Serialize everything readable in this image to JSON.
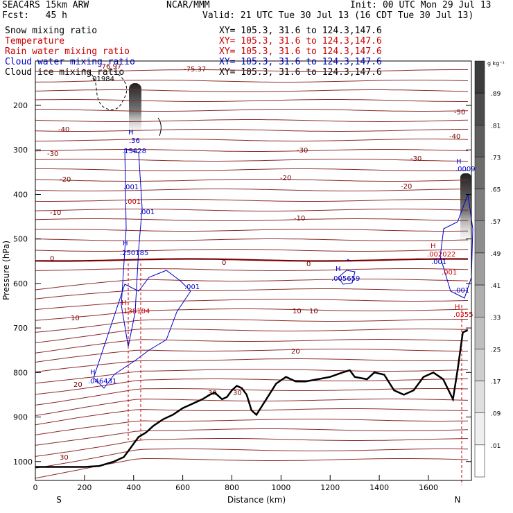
{
  "header": {
    "model": "SEAC4RS 15km ARW",
    "center": "NCAR/MMM",
    "init": "Init: 00 UTC Mon 29 Jul 13",
    "fcst": "Fcst:   45 h",
    "valid": "Valid: 21 UTC Tue 30 Jul 13 (16 CDT Tue 30 Jul 13)"
  },
  "fields": [
    {
      "name": "Snow mixing ratio",
      "xy": "XY= 105.3, 31.6 to 124.3,147.6",
      "color": "#000000"
    },
    {
      "name": "Temperature",
      "xy": "XY= 105.3, 31.6 to 124.3,147.6",
      "color": "#cc0000"
    },
    {
      "name": "Rain water mixing ratio",
      "xy": "XY= 105.3, 31.6 to 124.3,147.6",
      "color": "#cc0000"
    },
    {
      "name": "Cloud water mixing ratio",
      "xy": "XY= 105.3, 31.6 to 124.3,147.6",
      "color": "#0000cc"
    },
    {
      "name": "Cloud ice mixing ratio",
      "xy": "XY= 105.3, 31.6 to 124.3,147.6",
      "color": "#000000"
    }
  ],
  "chart_data": {
    "type": "contour",
    "xlabel": "Distance (km)",
    "ylabel": "Pressure (hPa)",
    "xlim": [
      0,
      1775
    ],
    "ylim": [
      1000,
      100
    ],
    "xticks": [
      0,
      200,
      400,
      600,
      800,
      1000,
      1200,
      1400,
      1600
    ],
    "yticks": [
      200,
      300,
      400,
      500,
      600,
      700,
      800,
      900,
      1000
    ],
    "x_endpoints": {
      "left": "S",
      "right": "N"
    },
    "colorbar": {
      "unit": "g kg⁻¹",
      "labels": [
        ".89",
        ".81",
        ".73",
        ".65",
        ".57",
        ".49",
        ".41",
        ".33",
        ".25",
        ".17",
        ".09",
        ".01"
      ]
    },
    "temperature_labels": [
      "-75.37",
      "-76.97",
      "-50",
      "-40",
      "-30",
      "-20",
      "-10",
      "0",
      "10",
      "20",
      "30"
    ],
    "snow_labels": [
      ".01984"
    ],
    "cloud_water_labels": [
      "H",
      ".36",
      ".15628",
      ".001",
      "H",
      ".250185",
      ".001",
      "H",
      ".005659",
      "^",
      ".001",
      "H",
      ".0009",
      "H",
      ".046431"
    ],
    "rain_labels": [
      ".001",
      "H",
      ".138104",
      "H",
      ".002022",
      ".001",
      "H",
      ".0355"
    ],
    "terrain_km": [
      0,
      120,
      200,
      260,
      320,
      360,
      380,
      400,
      420,
      450,
      480,
      520,
      560,
      600,
      640,
      680,
      710,
      730,
      760,
      780,
      800,
      820,
      840,
      860,
      880,
      900,
      940,
      980,
      1020,
      1060,
      1100,
      1150,
      1200,
      1250,
      1280,
      1300,
      1350,
      1380,
      1420,
      1460,
      1500,
      1540,
      1580,
      1620,
      1660,
      1700,
      1720,
      1740,
      1760
    ],
    "terrain_hpa": [
      1012,
      1012,
      1012,
      1010,
      1000,
      990,
      975,
      960,
      945,
      935,
      920,
      905,
      895,
      880,
      870,
      860,
      850,
      845,
      860,
      855,
      840,
      830,
      835,
      850,
      885,
      895,
      860,
      825,
      810,
      820,
      820,
      815,
      810,
      800,
      795,
      810,
      815,
      800,
      805,
      840,
      850,
      840,
      810,
      800,
      815,
      860,
      790,
      710,
      705
    ]
  }
}
